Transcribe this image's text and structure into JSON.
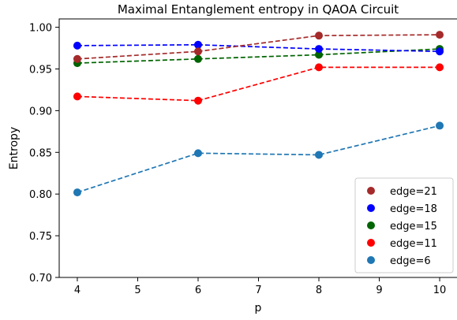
{
  "chart_data": {
    "type": "line",
    "title": "Maximal Entanglement entropy in QAOA Circuit",
    "xlabel": "p",
    "ylabel": "Entropy",
    "x": [
      4,
      6,
      8,
      10
    ],
    "xlim": [
      3.7,
      10.3
    ],
    "ylim": [
      0.7,
      1.01
    ],
    "xticks": [
      "4",
      "5",
      "6",
      "7",
      "8",
      "9",
      "10"
    ],
    "yticks": [
      "0.70",
      "0.75",
      "0.80",
      "0.85",
      "0.90",
      "0.95",
      "1.00"
    ],
    "legend_position": "lower right",
    "grid": false,
    "series": [
      {
        "name": "edge=21",
        "color": "#a52a2a",
        "values": [
          0.962,
          0.971,
          0.99,
          0.991
        ]
      },
      {
        "name": "edge=18",
        "color": "#0000ff",
        "values": [
          0.978,
          0.979,
          0.974,
          0.971
        ]
      },
      {
        "name": "edge=15",
        "color": "#006400",
        "values": [
          0.957,
          0.962,
          0.967,
          0.974
        ]
      },
      {
        "name": "edge=11",
        "color": "#ff0000",
        "values": [
          0.917,
          0.912,
          0.952,
          0.952
        ]
      },
      {
        "name": "edge=6",
        "color": "#1f77b4",
        "values": [
          0.802,
          0.849,
          0.847,
          0.882
        ]
      }
    ]
  }
}
